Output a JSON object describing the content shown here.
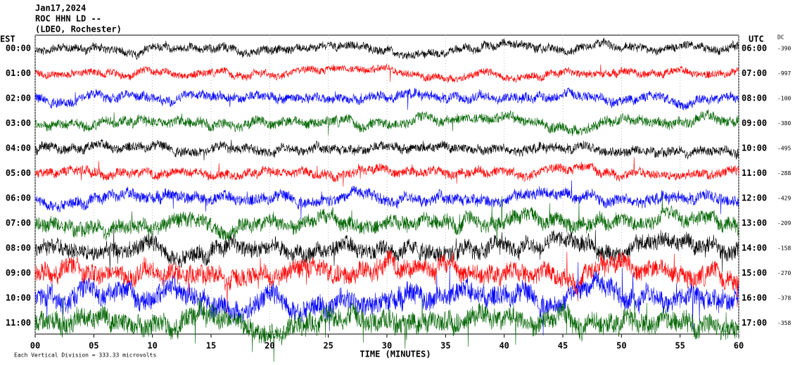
{
  "chart_data": {
    "type": "helicorder",
    "title": "Jan17,2024",
    "subtitle": "ROC HHN LD --",
    "station": "(LDEO, Rochester)",
    "left_axis_label": "EST",
    "right_axis_label": "UTC",
    "dc_label": "DC",
    "categories": [
      "00:00",
      "01:00",
      "02:00",
      "03:00",
      "04:00",
      "05:00",
      "06:00",
      "07:00",
      "08:00",
      "09:00",
      "10:00",
      "11:00"
    ],
    "right_categories": [
      "06:00",
      "07:00",
      "08:00",
      "09:00",
      "10:00",
      "11:00",
      "12:00",
      "13:00",
      "14:00",
      "15:00",
      "16:00",
      "17:00"
    ],
    "dc_values": [
      -390,
      -997,
      -100,
      -380,
      -495,
      -288,
      -429,
      -209,
      -158,
      -270,
      -378,
      -358
    ],
    "colors": [
      "#000000",
      "#ff0000",
      "#0000ff",
      "#006400"
    ],
    "xlim": [
      0,
      60
    ],
    "xticks": [
      {
        "value": 0,
        "label": "00"
      },
      {
        "value": 5,
        "label": "05"
      },
      10,
      15,
      20,
      25,
      30,
      35,
      40,
      45,
      50,
      55,
      60
    ],
    "xlabel": "TIME (MINUTES)",
    "footnote": "Each Vertical Division = 333.33 microvolts"
  }
}
